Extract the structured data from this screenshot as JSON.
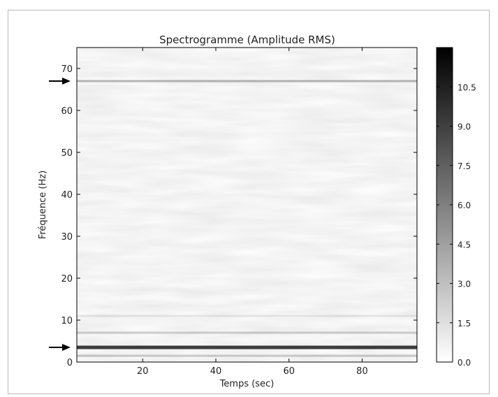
{
  "chart_data": {
    "type": "heatmap",
    "title": "Spectrogramme (Amplitude RMS)",
    "xlabel": "Temps (sec)",
    "ylabel": "Fréquence (Hz)",
    "xlim": [
      2,
      95
    ],
    "ylim": [
      0,
      75
    ],
    "x_ticks": [
      "20",
      "40",
      "60",
      "80"
    ],
    "x_tick_values": [
      20,
      40,
      60,
      80
    ],
    "y_ticks": [
      "0",
      "10",
      "20",
      "30",
      "40",
      "50",
      "60",
      "70"
    ],
    "y_tick_values": [
      0,
      10,
      20,
      30,
      40,
      50,
      60,
      70
    ],
    "colorbar": {
      "min": 0.0,
      "max": 12.0,
      "ticks": [
        "0.0",
        "1.5",
        "3.0",
        "4.5",
        "6.0",
        "7.5",
        "9.0",
        "10.5"
      ],
      "tick_values": [
        0.0,
        1.5,
        3.0,
        4.5,
        6.0,
        7.5,
        9.0,
        10.5
      ],
      "colormap": "gray_r"
    },
    "bands": [
      {
        "frequency": 3.5,
        "amplitude": 9.5
      },
      {
        "frequency": 1.5,
        "amplitude": 2.5
      },
      {
        "frequency": 7.0,
        "amplitude": 2.2
      },
      {
        "frequency": 11.0,
        "amplitude": 1.0
      },
      {
        "frequency": 67.0,
        "amplitude": 3.5
      }
    ],
    "arrows": [
      {
        "frequency": 67.0
      },
      {
        "frequency": 3.5
      }
    ],
    "grid": false,
    "colors": {
      "arrow": "#000000",
      "frame": "#000000"
    }
  }
}
